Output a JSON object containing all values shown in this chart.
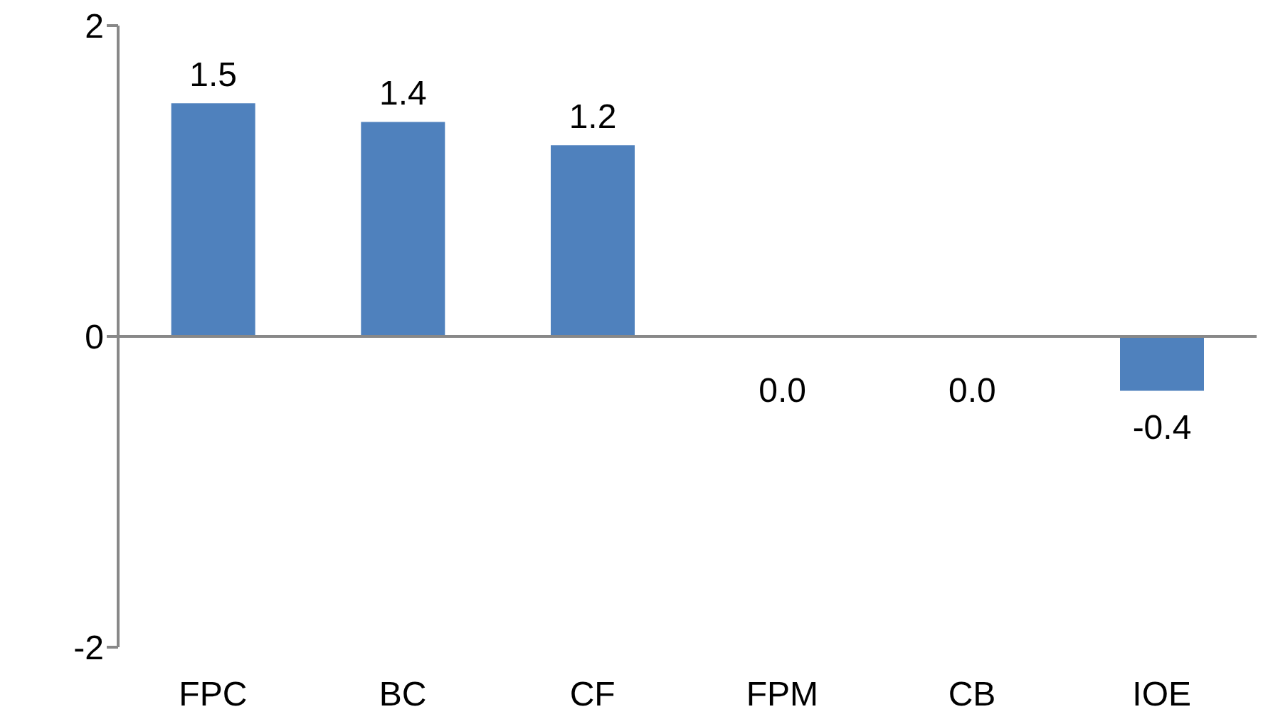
{
  "chart_data": {
    "type": "bar",
    "categories": [
      "FPC",
      "BC",
      "CF",
      "FPM",
      "CB",
      "IOE"
    ],
    "values": [
      1.5,
      1.38,
      1.23,
      0.0,
      0.0,
      -0.35
    ],
    "value_labels": [
      "1.5",
      "1.4",
      "1.2",
      "0.0",
      "0.0",
      "-0.4"
    ],
    "color": "#4f81bd",
    "ylim": [
      -2,
      2
    ],
    "yticks": [
      -2,
      0,
      2
    ],
    "legend": false
  }
}
